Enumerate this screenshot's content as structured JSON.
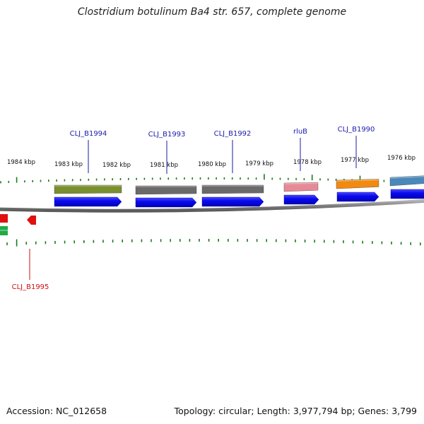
{
  "title": "Clostridium botulinum Ba4 str. 657, complete genome",
  "footer": {
    "accession": "Accession: NC_012658",
    "summary": "Topology: circular; Length: 3,977,794 bp; Genes: 3,799"
  },
  "kbp_labels": [
    "1984 kbp",
    "1983 kbp",
    "1982 kbp",
    "1981 kbp",
    "1980 kbp",
    "1979 kbp",
    "1978 kbp",
    "1977 kbp",
    "1976 kbp"
  ],
  "genes_above": [
    {
      "label": "CLJ_B1994",
      "color": "#7a8f2e"
    },
    {
      "label": "CLJ_B1993",
      "color": "#6a6a6a"
    },
    {
      "label": "CLJ_B1992",
      "color": "#6a6a6a"
    },
    {
      "label": "rluB",
      "color": "#e88a96"
    },
    {
      "label": "CLJ_B1990",
      "color": "#f28a10"
    },
    {
      "label": "",
      "color": "#4a88bb"
    }
  ],
  "genes_below": [
    {
      "label": "CLJ_B1995",
      "color": "#e01010"
    }
  ],
  "colors": {
    "gene_label_blue": "#1a1aaa",
    "gene_label_red": "#cc1111",
    "forward_arrow": "#0a0aee",
    "tick_green": "#1a7a1a",
    "backbone": "#8a8a8a",
    "reverse_green": "#22aa44"
  }
}
